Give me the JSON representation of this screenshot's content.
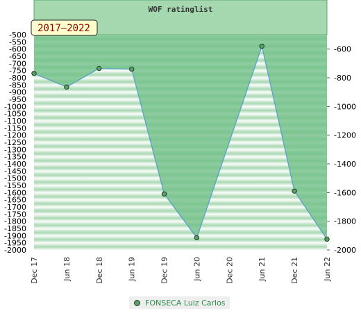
{
  "chart_data": {
    "type": "area",
    "title": "WOF ratinglist",
    "period_label": "2017–2022",
    "categories": [
      "Dec 17",
      "Jun 18",
      "Dec 18",
      "Jun 19",
      "Dec 19",
      "Jun 20",
      "Dec 20",
      "Jun 21",
      "Dec 21",
      "Jun 22"
    ],
    "left_axis_ticks": [
      "-500",
      "-550",
      "-600",
      "-650",
      "-700",
      "-750",
      "-800",
      "-850",
      "-900",
      "-950",
      "-1000",
      "-1050",
      "-1100",
      "-1150",
      "-1200",
      "-1250",
      "-1300",
      "-1350",
      "-1400",
      "-1450",
      "-1500",
      "-1550",
      "-1600",
      "-1650",
      "-1700",
      "-1750",
      "-1800",
      "-1850",
      "-1900",
      "-1950",
      "-2000"
    ],
    "right_axis_ticks": [
      "-600",
      "-800",
      "-1000",
      "-1200",
      "-1400",
      "-1600",
      "-1800",
      "-2000"
    ],
    "left_ylim": [
      -2000,
      -500
    ],
    "right_ylim": [
      -2000,
      -500
    ],
    "grid": false,
    "legend_position": "bottom",
    "series": [
      {
        "name": "FONSECA Luiz Carlos",
        "x": [
          0,
          1,
          2,
          3,
          4,
          5,
          7,
          8,
          9
        ],
        "values": [
          -770,
          -865,
          -735,
          -740,
          -1610,
          -1915,
          -580,
          -1590,
          -1925
        ]
      }
    ]
  },
  "colors": {
    "fill": "#6fbf86",
    "line": "#5aa0c8",
    "marker": "#5a9e66",
    "legend_text": "#2c8a4a",
    "badge_bg": "#ffffcc"
  }
}
